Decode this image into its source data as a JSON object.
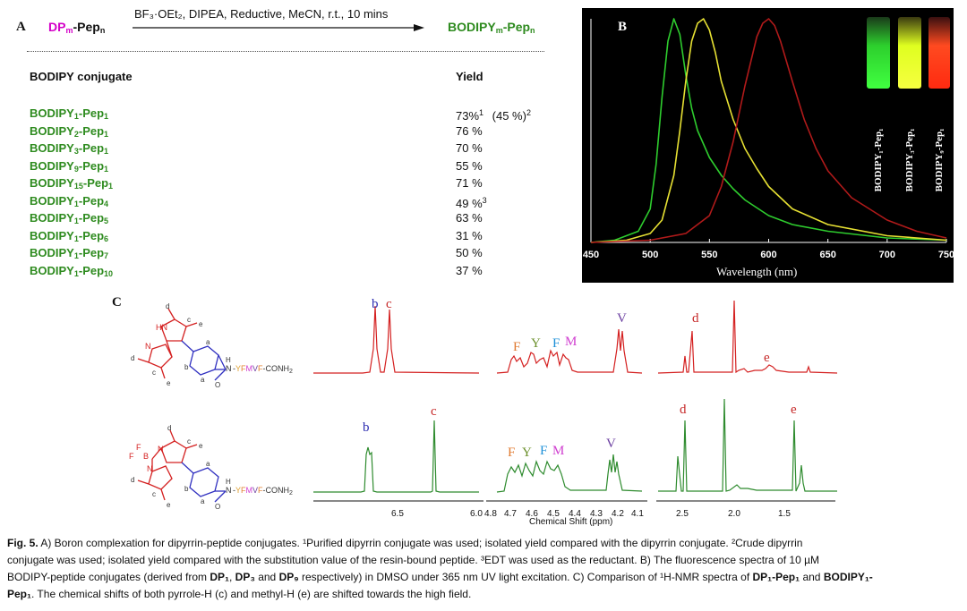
{
  "panelA": {
    "letter": "A",
    "reactant_main": "DP",
    "reactant_sub": "m",
    "reactant_tail": "-Pep",
    "reactant_tail_sub": "n",
    "conditions": "BF₃·OEt₂, DIPEA, Reductive, MeCN, r.t., 10 mins",
    "product_main": "BODIPY",
    "product_sub": "m",
    "product_tail": "-Pep",
    "product_tail_sub": "n",
    "table_header_left": "BODIPY conjugate",
    "table_header_right": "Yield",
    "rows": [
      {
        "a": "1",
        "b": "1",
        "yield": "73%",
        "sup1": "1",
        "extra": "(45 %)",
        "sup2": "2"
      },
      {
        "a": "2",
        "b": "1",
        "yield": "76 %",
        "sup1": "",
        "extra": "",
        "sup2": ""
      },
      {
        "a": "3",
        "b": "1",
        "yield": "70 %",
        "sup1": "",
        "extra": "",
        "sup2": ""
      },
      {
        "a": "9",
        "b": "1",
        "yield": "55 %",
        "sup1": "",
        "extra": "",
        "sup2": ""
      },
      {
        "a": "15",
        "b": "1",
        "yield": "71 %",
        "sup1": "",
        "extra": "",
        "sup2": ""
      },
      {
        "a": "1",
        "b": "4",
        "yield": "49 %",
        "sup1": "3",
        "extra": "",
        "sup2": ""
      },
      {
        "a": "1",
        "b": "5",
        "yield": "63 %",
        "sup1": "",
        "extra": "",
        "sup2": ""
      },
      {
        "a": "1",
        "b": "6",
        "yield": "31 %",
        "sup1": "",
        "extra": "",
        "sup2": ""
      },
      {
        "a": "1",
        "b": "7",
        "yield": "50 %",
        "sup1": "",
        "extra": "",
        "sup2": ""
      },
      {
        "a": "1",
        "b": "10",
        "yield": "37 %",
        "sup1": "",
        "extra": "",
        "sup2": ""
      }
    ]
  },
  "panelB": {
    "letter": "B",
    "xlabel": "Wavelength (nm)",
    "vial_labels": [
      "BODIPY₁-Pep₁",
      "BODIPY₃-Pep₁",
      "BODIPY₉-Pep₁"
    ],
    "vial_colors": [
      "#3dff3d",
      "#f0ff20",
      "#ff3a1a"
    ],
    "chart_data": {
      "type": "line",
      "title": "",
      "xlabel": "Wavelength (nm)",
      "ylabel": "",
      "xlim": [
        450,
        750
      ],
      "ylim": [
        0,
        1
      ],
      "x_ticks": [
        450,
        500,
        550,
        600,
        650,
        700,
        750
      ],
      "grid": false,
      "series": [
        {
          "color": "#2ecc2e",
          "x": [
            450,
            470,
            490,
            500,
            505,
            510,
            515,
            520,
            525,
            530,
            535,
            540,
            550,
            560,
            570,
            580,
            600,
            620,
            650,
            700,
            750
          ],
          "y": [
            0.0,
            0.01,
            0.05,
            0.15,
            0.35,
            0.65,
            0.9,
            1.0,
            0.93,
            0.75,
            0.6,
            0.5,
            0.38,
            0.3,
            0.24,
            0.19,
            0.12,
            0.08,
            0.05,
            0.02,
            0.01
          ]
        },
        {
          "color": "#e6e033",
          "x": [
            450,
            480,
            500,
            510,
            520,
            525,
            530,
            535,
            540,
            545,
            550,
            555,
            560,
            570,
            580,
            590,
            600,
            620,
            650,
            700,
            750
          ],
          "y": [
            0.0,
            0.01,
            0.04,
            0.1,
            0.3,
            0.5,
            0.72,
            0.9,
            0.98,
            1.0,
            0.95,
            0.85,
            0.72,
            0.55,
            0.42,
            0.33,
            0.25,
            0.15,
            0.08,
            0.03,
            0.01
          ]
        },
        {
          "color": "#b01a1a",
          "x": [
            450,
            500,
            530,
            550,
            560,
            570,
            580,
            590,
            595,
            600,
            605,
            610,
            620,
            630,
            640,
            650,
            670,
            700,
            725,
            750
          ],
          "y": [
            0.0,
            0.01,
            0.04,
            0.12,
            0.25,
            0.45,
            0.7,
            0.92,
            0.98,
            1.0,
            0.97,
            0.9,
            0.72,
            0.55,
            0.42,
            0.32,
            0.2,
            0.1,
            0.05,
            0.02
          ]
        }
      ]
    }
  },
  "panelC": {
    "letter": "C",
    "xlabel": "Chemical Shift (ppm)",
    "seq_text": "-YFMVF-CONH₂",
    "nh_text": "N",
    "ticks_mid_left": [
      "6.5",
      "6.0"
    ],
    "ticks_mid": [
      "4.8",
      "4.7",
      "4.6",
      "4.5",
      "4.4",
      "4.3",
      "4.2",
      "4.1"
    ],
    "ticks_right": [
      "2.5",
      "2.0",
      "1.5"
    ],
    "labels": {
      "b": "b",
      "c": "c",
      "F": "F",
      "Y": "Y",
      "M": "M",
      "V": "V",
      "d": "d",
      "e": "e"
    }
  },
  "caption": {
    "fig": "Fig. 5.",
    "text1": " A) Boron complexation for dipyrrin-peptide conjugates. ¹Purified dipyrrin conjugate was used; isolated yield compared with the dipyrrin conjugate. ²Crude dipyrrin",
    "text2": "conjugate was used; isolated yield compared with the substitution value of the resin-bound peptide. ³EDT was used as the reductant. B) The fluorescence spectra of 10 µM",
    "text3a": "BODIPY-peptide conjugates (derived from ",
    "dp1": "DP₁",
    "comma": ", ",
    "dp3": "DP₃",
    "and": " and ",
    "dp9": "DP₉",
    "text3b": " respectively) in DMSO under 365 nm UV light excitation. C) Comparison of ¹H-NMR spectra of ",
    "dp1pep1": "DP₁-Pep₁",
    "and2": " and ",
    "bod1": "BODIPY₁-",
    "pep1": "Pep₁",
    "text4": ". The chemical shifts of both pyrrole-H (c) and methyl-H (e) are shifted towards the high field."
  }
}
